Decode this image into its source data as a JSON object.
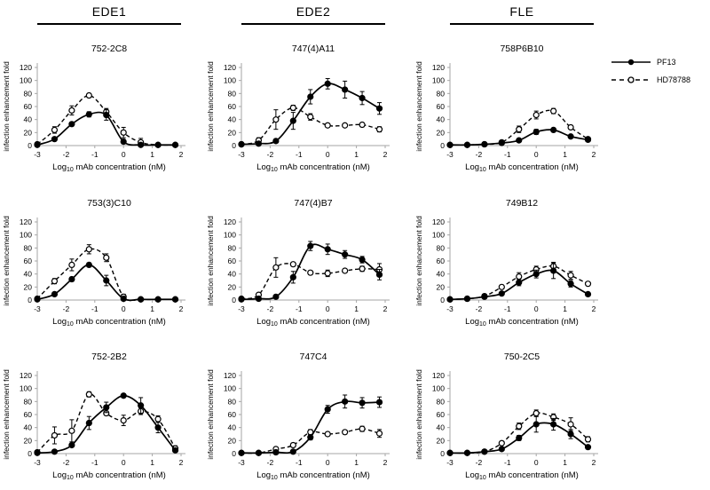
{
  "figure": {
    "column_headers": [
      {
        "label": "EDE1"
      },
      {
        "label": "EDE2"
      },
      {
        "label": "FLE"
      }
    ],
    "legend": {
      "entries": [
        {
          "label": "PF13",
          "marker": "filled-circle",
          "line": "solid"
        },
        {
          "label": "HD78788",
          "marker": "open-circle",
          "line": "dashed"
        }
      ]
    },
    "colors": {
      "series": "#000000",
      "axis": "#a6a6a6",
      "text": "#000000",
      "background": "#ffffff"
    }
  },
  "chart_data": [
    {
      "type": "line",
      "title": "752-2C8",
      "group": "EDE1",
      "row": 0,
      "col": 0,
      "xlabel": {
        "prefix": "Log",
        "sub": "10",
        "suffix": " mAb concentration (nM)"
      },
      "ylabel": "infection enhancement fold",
      "x": [
        -3,
        -2.4,
        -1.8,
        -1.2,
        -0.6,
        0,
        0.6,
        1.2,
        1.8
      ],
      "xticks": [
        -3,
        -2,
        -1,
        0,
        1,
        2
      ],
      "yticks": [
        0,
        20,
        40,
        60,
        80,
        100,
        120
      ],
      "ylim": [
        0,
        120
      ],
      "series": [
        {
          "name": "PF13",
          "line": "solid",
          "marker": "filled-circle",
          "values": [
            1,
            10,
            33,
            48,
            47,
            6,
            1,
            1,
            1
          ],
          "errors": [
            1,
            2,
            3,
            4,
            8,
            3,
            1,
            1,
            1
          ]
        },
        {
          "name": "HD78788",
          "line": "dashed",
          "marker": "open-circle",
          "values": [
            2,
            24,
            54,
            77,
            52,
            20,
            5,
            1,
            1
          ],
          "errors": [
            2,
            5,
            7,
            3,
            5,
            8,
            6,
            1,
            1
          ]
        }
      ]
    },
    {
      "type": "line",
      "title": "747(4)A11",
      "group": "EDE2",
      "row": 0,
      "col": 1,
      "xlabel": {
        "prefix": "Log",
        "sub": "10",
        "suffix": " mAb concentration (nM)"
      },
      "ylabel": "infection enhancement fold",
      "x": [
        -3,
        -2.4,
        -1.8,
        -1.2,
        -0.6,
        0,
        0.6,
        1.2,
        1.8
      ],
      "xticks": [
        -3,
        -2,
        -1,
        0,
        1,
        2
      ],
      "yticks": [
        0,
        20,
        40,
        60,
        80,
        100,
        120
      ],
      "ylim": [
        0,
        120
      ],
      "series": [
        {
          "name": "PF13",
          "line": "solid",
          "marker": "filled-circle",
          "values": [
            2,
            3,
            7,
            38,
            75,
            95,
            86,
            73,
            57
          ],
          "errors": [
            1,
            2,
            3,
            13,
            11,
            8,
            13,
            10,
            9
          ]
        },
        {
          "name": "HD78788",
          "line": "dashed",
          "marker": "open-circle",
          "values": [
            2,
            8,
            40,
            58,
            44,
            31,
            31,
            32,
            25
          ],
          "errors": [
            1,
            4,
            15,
            4,
            5,
            3,
            2,
            3,
            4
          ]
        }
      ]
    },
    {
      "type": "line",
      "title": "758P6B10",
      "group": "FLE",
      "row": 0,
      "col": 2,
      "xlabel": {
        "prefix": "Log",
        "sub": "10",
        "suffix": " mAb concentration (nM)"
      },
      "ylabel": "infection enhancement fold",
      "x": [
        -3,
        -2.4,
        -1.8,
        -1.2,
        -0.6,
        0,
        0.6,
        1.2,
        1.8
      ],
      "xticks": [
        -3,
        -2,
        -1,
        0,
        1,
        2
      ],
      "yticks": [
        0,
        20,
        40,
        60,
        80,
        100,
        120
      ],
      "ylim": [
        0,
        120
      ],
      "series": [
        {
          "name": "PF13",
          "line": "solid",
          "marker": "filled-circle",
          "values": [
            1,
            1,
            2,
            4,
            8,
            21,
            24,
            14,
            9
          ],
          "errors": [
            1,
            1,
            1,
            1,
            2,
            4,
            3,
            2,
            2
          ]
        },
        {
          "name": "HD78788",
          "line": "dashed",
          "marker": "open-circle",
          "values": [
            1,
            1,
            2,
            5,
            25,
            47,
            53,
            28,
            10
          ],
          "errors": [
            1,
            1,
            1,
            1,
            5,
            6,
            4,
            3,
            2
          ]
        }
      ]
    },
    {
      "type": "line",
      "title": "753(3)C10",
      "group": "EDE1",
      "row": 1,
      "col": 0,
      "xlabel": {
        "prefix": "Log",
        "sub": "10",
        "suffix": " mAb concentration (nM)"
      },
      "ylabel": "infection enhancement fold",
      "x": [
        -3,
        -2.4,
        -1.8,
        -1.2,
        -0.6,
        0,
        0.6,
        1.2,
        1.8
      ],
      "xticks": [
        -3,
        -2,
        -1,
        0,
        1,
        2
      ],
      "yticks": [
        0,
        20,
        40,
        60,
        80,
        100,
        120
      ],
      "ylim": [
        0,
        120
      ],
      "series": [
        {
          "name": "PF13",
          "line": "solid",
          "marker": "filled-circle",
          "values": [
            1,
            9,
            32,
            54,
            30,
            2,
            1,
            1,
            1
          ],
          "errors": [
            1,
            2,
            3,
            3,
            8,
            2,
            1,
            1,
            1
          ]
        },
        {
          "name": "HD78788",
          "line": "dashed",
          "marker": "open-circle",
          "values": [
            2,
            29,
            54,
            78,
            65,
            5,
            1,
            1,
            1
          ],
          "errors": [
            2,
            4,
            9,
            7,
            6,
            4,
            1,
            1,
            1
          ]
        }
      ]
    },
    {
      "type": "line",
      "title": "747(4)B7",
      "group": "EDE2",
      "row": 1,
      "col": 1,
      "xlabel": {
        "prefix": "Log",
        "sub": "10",
        "suffix": " mAb concentration (nM)"
      },
      "ylabel": "infection enhancement fold",
      "x": [
        -3,
        -2.4,
        -1.8,
        -1.2,
        -0.6,
        0,
        0.6,
        1.2,
        1.8
      ],
      "xticks": [
        -3,
        -2,
        -1,
        0,
        1,
        2
      ],
      "yticks": [
        0,
        20,
        40,
        60,
        80,
        100,
        120
      ],
      "ylim": [
        0,
        120
      ],
      "series": [
        {
          "name": "PF13",
          "line": "solid",
          "marker": "filled-circle",
          "values": [
            1,
            2,
            5,
            35,
            83,
            78,
            70,
            62,
            39
          ],
          "errors": [
            1,
            1,
            2,
            9,
            7,
            8,
            6,
            5,
            8
          ]
        },
        {
          "name": "HD78788",
          "line": "dashed",
          "marker": "open-circle",
          "values": [
            2,
            8,
            50,
            55,
            42,
            41,
            45,
            48,
            47
          ],
          "errors": [
            1,
            3,
            15,
            3,
            3,
            5,
            3,
            4,
            9
          ]
        }
      ]
    },
    {
      "type": "line",
      "title": "749B12",
      "group": "FLE",
      "row": 1,
      "col": 2,
      "xlabel": {
        "prefix": "Log",
        "sub": "10",
        "suffix": " mAb concentration (nM)"
      },
      "ylabel": "infection enhancement fold",
      "x": [
        -3,
        -2.4,
        -1.8,
        -1.2,
        -0.6,
        0,
        0.6,
        1.2,
        1.8
      ],
      "xticks": [
        -3,
        -2,
        -1,
        0,
        1,
        2
      ],
      "yticks": [
        0,
        20,
        40,
        60,
        80,
        100,
        120
      ],
      "ylim": [
        0,
        120
      ],
      "series": [
        {
          "name": "PF13",
          "line": "solid",
          "marker": "filled-circle",
          "values": [
            1,
            2,
            5,
            10,
            27,
            40,
            45,
            25,
            9
          ],
          "errors": [
            1,
            1,
            2,
            2,
            5,
            6,
            12,
            5,
            2
          ]
        },
        {
          "name": "HD78788",
          "line": "dashed",
          "marker": "open-circle",
          "values": [
            1,
            2,
            6,
            20,
            36,
            47,
            52,
            38,
            25
          ],
          "errors": [
            1,
            1,
            2,
            3,
            6,
            5,
            6,
            6,
            3
          ]
        }
      ]
    },
    {
      "type": "line",
      "title": "752-2B2",
      "group": "EDE1",
      "row": 2,
      "col": 0,
      "xlabel": {
        "prefix": "Log",
        "sub": "10",
        "suffix": " mAb concentration (nM)"
      },
      "ylabel": "infection enhancement fold",
      "x": [
        -3,
        -2.4,
        -1.8,
        -1.2,
        -0.6,
        0,
        0.6,
        1.2,
        1.8
      ],
      "xticks": [
        -3,
        -2,
        -1,
        0,
        1,
        2
      ],
      "yticks": [
        0,
        20,
        40,
        60,
        80,
        100,
        120
      ],
      "ylim": [
        0,
        120
      ],
      "series": [
        {
          "name": "PF13",
          "line": "solid",
          "marker": "filled-circle",
          "values": [
            1,
            3,
            13,
            47,
            71,
            89,
            74,
            40,
            5
          ],
          "errors": [
            1,
            1,
            2,
            10,
            8,
            3,
            12,
            8,
            2
          ]
        },
        {
          "name": "HD78788",
          "line": "dashed",
          "marker": "open-circle",
          "values": [
            2,
            28,
            35,
            91,
            62,
            51,
            65,
            53,
            8
          ],
          "errors": [
            2,
            13,
            17,
            4,
            3,
            8,
            5,
            5,
            4
          ]
        }
      ]
    },
    {
      "type": "line",
      "title": "747C4",
      "group": "EDE2",
      "row": 2,
      "col": 1,
      "xlabel": {
        "prefix": "Log",
        "sub": "10",
        "suffix": " mAb concentration (nM)"
      },
      "ylabel": "infection enhancement fold",
      "x": [
        -3,
        -2.4,
        -1.8,
        -1.2,
        -0.6,
        0,
        0.6,
        1.2,
        1.8
      ],
      "xticks": [
        -3,
        -2,
        -1,
        0,
        1,
        2
      ],
      "yticks": [
        0,
        20,
        40,
        60,
        80,
        100,
        120
      ],
      "ylim": [
        0,
        120
      ],
      "series": [
        {
          "name": "PF13",
          "line": "solid",
          "marker": "filled-circle",
          "values": [
            1,
            1,
            2,
            3,
            25,
            68,
            80,
            78,
            79
          ],
          "errors": [
            1,
            1,
            1,
            2,
            4,
            6,
            10,
            8,
            8
          ]
        },
        {
          "name": "HD78788",
          "line": "dashed",
          "marker": "open-circle",
          "values": [
            1,
            1,
            7,
            13,
            33,
            30,
            33,
            38,
            31
          ],
          "errors": [
            1,
            1,
            3,
            3,
            4,
            3,
            3,
            4,
            6
          ]
        }
      ]
    },
    {
      "type": "line",
      "title": "750-2C5",
      "group": "FLE",
      "row": 2,
      "col": 2,
      "xlabel": {
        "prefix": "Log",
        "sub": "10",
        "suffix": " mAb concentration (nM)"
      },
      "ylabel": "infection enhancement fold",
      "x": [
        -3,
        -2.4,
        -1.8,
        -1.2,
        -0.6,
        0,
        0.6,
        1.2,
        1.8
      ],
      "xticks": [
        -3,
        -2,
        -1,
        0,
        1,
        2
      ],
      "yticks": [
        0,
        20,
        40,
        60,
        80,
        100,
        120
      ],
      "ylim": [
        0,
        120
      ],
      "series": [
        {
          "name": "PF13",
          "line": "solid",
          "marker": "filled-circle",
          "values": [
            1,
            1,
            3,
            7,
            24,
            45,
            45,
            30,
            10
          ],
          "errors": [
            1,
            1,
            1,
            2,
            4,
            12,
            9,
            7,
            3
          ]
        },
        {
          "name": "HD78788",
          "line": "dashed",
          "marker": "open-circle",
          "values": [
            1,
            1,
            3,
            16,
            42,
            62,
            56,
            45,
            22
          ],
          "errors": [
            1,
            1,
            1,
            3,
            5,
            5,
            5,
            10,
            4
          ]
        }
      ]
    }
  ]
}
